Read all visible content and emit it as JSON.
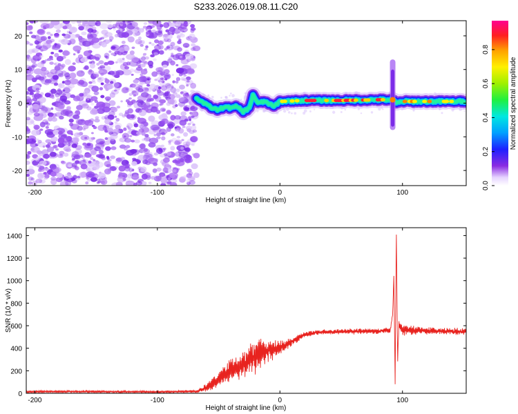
{
  "title": "S233.2026.019.08.11.C20",
  "chart_data": [
    {
      "type": "heatmap",
      "xlabel": "Height of straight line (km)",
      "ylabel": "Frequency (Hz)",
      "xlim": [
        -207,
        152
      ],
      "ylim": [
        -24.5,
        24.5
      ],
      "xticks": [
        -200,
        -100,
        0,
        100
      ],
      "yticks": [
        -20,
        -10,
        0,
        10,
        20
      ],
      "noise_region_x": [
        -207,
        -68
      ],
      "ridge": {
        "x": [
          -68,
          -60,
          -55,
          -50,
          -45,
          -40,
          -35,
          -30,
          -25,
          -22,
          -18,
          -12,
          -5,
          0,
          20,
          50,
          80,
          90,
          92,
          95,
          100,
          110,
          120,
          150
        ],
        "freq": [
          1.5,
          -0.5,
          -1.5,
          -2.0,
          -1.0,
          -1.5,
          -1.0,
          -2.5,
          -1.5,
          2.5,
          0.0,
          0.5,
          -1.0,
          0.5,
          0.8,
          0.8,
          1.0,
          1.0,
          1.0,
          0.0,
          0.5,
          0.5,
          0.5,
          0.5
        ]
      },
      "spike_x": 92,
      "colorbar": {
        "label": "Normalized spectral amplitude",
        "ticks": [
          "0.0",
          "0.2",
          "0.4",
          "0.6",
          "0.8"
        ],
        "tick_values": [
          0.0,
          0.2,
          0.4,
          0.6,
          0.8
        ],
        "range": [
          0,
          0.97
        ]
      }
    },
    {
      "type": "line",
      "xlabel": "Height of straight line (km)",
      "ylabel": "SNR (10 * v/v)",
      "xlim": [
        -207,
        152
      ],
      "ylim": [
        0,
        1470
      ],
      "xticks": [
        -200,
        -100,
        0,
        100
      ],
      "yticks": [
        0,
        200,
        400,
        600,
        800,
        1000,
        1200,
        1400
      ],
      "color": "#e8231f",
      "series": [
        {
          "name": "SNR",
          "x": [
            -207,
            -150,
            -100,
            -68,
            -60,
            -50,
            -40,
            -30,
            -20,
            -10,
            0,
            10,
            20,
            30,
            40,
            60,
            80,
            90,
            92,
            93,
            94,
            95,
            96,
            97,
            100,
            110,
            120,
            140,
            152
          ],
          "values": [
            15,
            15,
            12,
            18,
            50,
            120,
            200,
            260,
            320,
            380,
            400,
            460,
            520,
            540,
            545,
            550,
            550,
            560,
            700,
            1060,
            80,
            1470,
            250,
            600,
            560,
            560,
            555,
            550,
            545
          ],
          "noise_amplitude": [
            8,
            8,
            8,
            10,
            30,
            60,
            90,
            110,
            120,
            80,
            50,
            30,
            20,
            20,
            20,
            20,
            20,
            20,
            0,
            0,
            0,
            0,
            0,
            40,
            40,
            30,
            25,
            25,
            25
          ]
        }
      ]
    }
  ]
}
